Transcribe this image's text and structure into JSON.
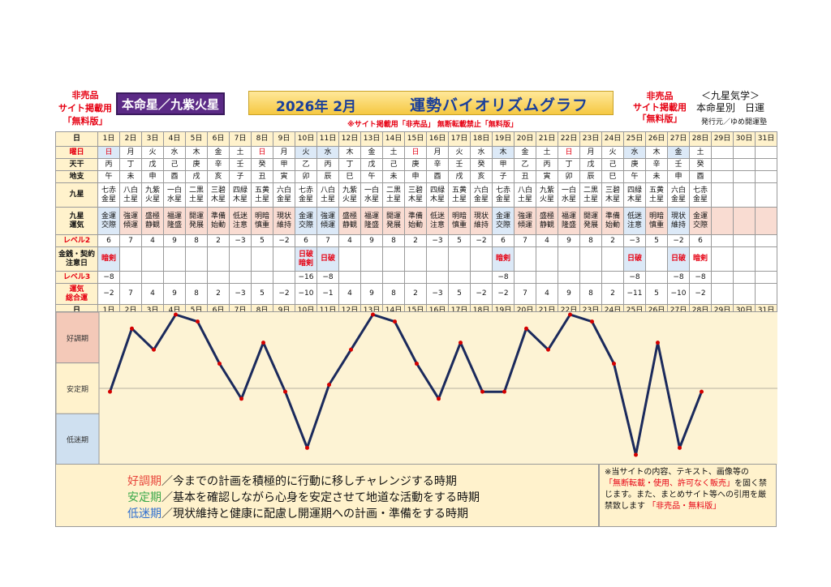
{
  "header": {
    "left_lines": [
      "非売品",
      "サイト掲載用",
      "「無料版」"
    ],
    "honmei": "本命星／九紫火星",
    "title_date": "2026年 2月",
    "title_main": "運勢バイオリズムグラフ",
    "notice": "※サイト掲載用「非売品」 無断転載禁止「無料版」",
    "right_lines": [
      "非売品",
      "サイト掲載用",
      "「無料版」"
    ],
    "kyusei_lines": [
      "＜九星気学＞",
      "本命星別　日運"
    ],
    "publisher": "発行元／ゆめ開運塾"
  },
  "table": {
    "labels": {
      "day": "日",
      "weekday": "曜日",
      "tenkan": "天干",
      "chishi": "地支",
      "kyusei": "九星",
      "unki": [
        "九星",
        "運気"
      ],
      "level2": "レベル2",
      "kinsen": [
        "金銭・契約",
        "注意日"
      ],
      "level3": "レベル3",
      "total": [
        "運気",
        "総合運"
      ]
    },
    "days": [
      "1日",
      "2日",
      "3日",
      "4日",
      "5日",
      "6日",
      "7日",
      "8日",
      "9日",
      "10日",
      "11日",
      "12日",
      "13日",
      "14日",
      "15日",
      "16日",
      "17日",
      "18日",
      "19日",
      "20日",
      "21日",
      "22日",
      "23日",
      "24日",
      "25日",
      "26日",
      "27日",
      "28日",
      "29日",
      "30日",
      "31日"
    ],
    "weekdays": [
      "日",
      "月",
      "火",
      "水",
      "木",
      "金",
      "土",
      "日",
      "月",
      "火",
      "水",
      "木",
      "金",
      "土",
      "日",
      "月",
      "火",
      "水",
      "木",
      "金",
      "土",
      "日",
      "月",
      "火",
      "水",
      "木",
      "金",
      "土",
      "",
      "",
      ""
    ],
    "tenkan": [
      "丙",
      "丁",
      "戊",
      "己",
      "庚",
      "辛",
      "壬",
      "癸",
      "甲",
      "乙",
      "丙",
      "丁",
      "戊",
      "己",
      "庚",
      "辛",
      "壬",
      "癸",
      "甲",
      "乙",
      "丙",
      "丁",
      "戊",
      "己",
      "庚",
      "辛",
      "壬",
      "癸",
      "",
      "",
      ""
    ],
    "chishi": [
      "午",
      "未",
      "申",
      "酉",
      "戌",
      "亥",
      "子",
      "丑",
      "寅",
      "卯",
      "辰",
      "巳",
      "午",
      "未",
      "申",
      "酉",
      "戌",
      "亥",
      "子",
      "丑",
      "寅",
      "卯",
      "辰",
      "巳",
      "午",
      "未",
      "申",
      "酉",
      "",
      "",
      ""
    ],
    "kyusei": [
      [
        "七赤",
        "金星"
      ],
      [
        "八白",
        "土星"
      ],
      [
        "九紫",
        "火星"
      ],
      [
        "一白",
        "水星"
      ],
      [
        "二黒",
        "土星"
      ],
      [
        "三碧",
        "木星"
      ],
      [
        "四緑",
        "木星"
      ],
      [
        "五黄",
        "土星"
      ],
      [
        "六白",
        "金星"
      ],
      [
        "七赤",
        "金星"
      ],
      [
        "八白",
        "土星"
      ],
      [
        "九紫",
        "火星"
      ],
      [
        "一白",
        "水星"
      ],
      [
        "二黒",
        "土星"
      ],
      [
        "三碧",
        "木星"
      ],
      [
        "四緑",
        "木星"
      ],
      [
        "五黄",
        "土星"
      ],
      [
        "六白",
        "金星"
      ],
      [
        "七赤",
        "金星"
      ],
      [
        "八白",
        "土星"
      ],
      [
        "九紫",
        "火星"
      ],
      [
        "一白",
        "水星"
      ],
      [
        "二黒",
        "土星"
      ],
      [
        "三碧",
        "木星"
      ],
      [
        "四緑",
        "木星"
      ],
      [
        "五黄",
        "土星"
      ],
      [
        "六白",
        "金星"
      ],
      [
        "七赤",
        "金星"
      ],
      [
        "",
        "",
        ""
      ],
      [
        "",
        ""
      ],
      [
        "",
        ""
      ]
    ],
    "unki": [
      [
        "金運",
        "交際"
      ],
      [
        "強運",
        "傾運"
      ],
      [
        "盛極",
        "静観"
      ],
      [
        "福運",
        "隆盛"
      ],
      [
        "開運",
        "発展"
      ],
      [
        "準備",
        "始動"
      ],
      [
        "低迷",
        "注意"
      ],
      [
        "明暗",
        "慎重"
      ],
      [
        "現状",
        "維持"
      ],
      [
        "金運",
        "交際"
      ],
      [
        "強運",
        "傾運"
      ],
      [
        "盛極",
        "静観"
      ],
      [
        "福運",
        "隆盛"
      ],
      [
        "開運",
        "発展"
      ],
      [
        "準備",
        "始動"
      ],
      [
        "低迷",
        "注意"
      ],
      [
        "明暗",
        "慎重"
      ],
      [
        "現状",
        "維持"
      ],
      [
        "金運",
        "交際"
      ],
      [
        "強運",
        "傾運"
      ],
      [
        "盛極",
        "静観"
      ],
      [
        "福運",
        "隆盛"
      ],
      [
        "開運",
        "発展"
      ],
      [
        "準備",
        "始動"
      ],
      [
        "低迷",
        "注意"
      ],
      [
        "明暗",
        "慎重"
      ],
      [
        "現状",
        "維持"
      ],
      [
        "金運",
        "交際"
      ],
      [
        "",
        ""
      ],
      [
        "",
        ""
      ],
      [
        "",
        ""
      ]
    ],
    "level2": [
      "6",
      "7",
      "4",
      "9",
      "8",
      "2",
      "−3",
      "5",
      "−2",
      "6",
      "7",
      "4",
      "9",
      "8",
      "2",
      "−3",
      "5",
      "−2",
      "6",
      "7",
      "4",
      "9",
      "8",
      "2",
      "−3",
      "5",
      "−2",
      "6",
      "",
      "",
      ""
    ],
    "kinsen": [
      [
        "暗剣"
      ],
      [
        ""
      ],
      [
        ""
      ],
      [
        ""
      ],
      [
        ""
      ],
      [
        ""
      ],
      [
        ""
      ],
      [
        ""
      ],
      [
        ""
      ],
      [
        "日破",
        "暗剣"
      ],
      [
        "日破"
      ],
      [
        ""
      ],
      [
        ""
      ],
      [
        ""
      ],
      [
        ""
      ],
      [
        ""
      ],
      [
        ""
      ],
      [
        ""
      ],
      [
        "暗剣"
      ],
      [
        ""
      ],
      [
        ""
      ],
      [
        ""
      ],
      [
        ""
      ],
      [
        ""
      ],
      [
        "日破"
      ],
      [
        ""
      ],
      [
        "日破"
      ],
      [
        "暗剣"
      ],
      [
        ""
      ],
      [
        ""
      ],
      [
        ""
      ]
    ],
    "level3": [
      "−8",
      "",
      "",
      "",
      "",
      "",
      "",
      "",
      "",
      "−16",
      "−8",
      "",
      "",
      "",
      "",
      "",
      "",
      "",
      "−8",
      "",
      "",
      "",
      "",
      "",
      "−8",
      "",
      "−8",
      "−8",
      "",
      "",
      ""
    ],
    "total": [
      "−2",
      "7",
      "4",
      "9",
      "8",
      "2",
      "−3",
      "5",
      "−2",
      "−10",
      "−1",
      "4",
      "9",
      "8",
      "2",
      "−3",
      "5",
      "−2",
      "−2",
      "7",
      "4",
      "9",
      "8",
      "2",
      "−11",
      "5",
      "−10",
      "−2",
      "",
      "",
      ""
    ]
  },
  "chart_data": {
    "type": "line",
    "x": [
      "1日",
      "2日",
      "3日",
      "4日",
      "5日",
      "6日",
      "7日",
      "8日",
      "9日",
      "10日",
      "11日",
      "12日",
      "13日",
      "14日",
      "15日",
      "16日",
      "17日",
      "18日",
      "19日",
      "20日",
      "21日",
      "22日",
      "23日",
      "24日",
      "25日",
      "26日",
      "27日",
      "28日"
    ],
    "series": [
      {
        "values": [
          -2,
          7,
          4,
          9,
          8,
          2,
          -3,
          5,
          -2,
          -10,
          -1,
          4,
          9,
          8,
          2,
          -3,
          5,
          -2,
          -2,
          7,
          4,
          9,
          8,
          2,
          -11,
          5,
          -10,
          -2
        ]
      }
    ],
    "ylim": [
      -11,
      9
    ],
    "bands": [
      "好調期",
      "安定期",
      "低迷期"
    ],
    "line_color": "#1b2a5c",
    "point_color": "#d40000"
  },
  "legend": [
    {
      "term": "好調期",
      "color": "#e8463c",
      "text": "／今までの計画を積極的に行動に移しチャレンジする時期"
    },
    {
      "term": "安定期",
      "color": "#3aa84a",
      "text": "／基本を確認しながら心身を安定させて地道な活動をする時期"
    },
    {
      "term": "低迷期",
      "color": "#2f6fd0",
      "text": "／現状維持と健康に配慮し開運期への計画・準備をする時期"
    }
  ],
  "note": {
    "line1": "※当サイトの内容、テキスト、画像等の",
    "red1": "「無断転載・使用、許可なく販売」",
    "line2": "を固く禁じます。また、まとめサイト等への引用を厳禁致します",
    "red2": "「非売品・無料版」"
  }
}
